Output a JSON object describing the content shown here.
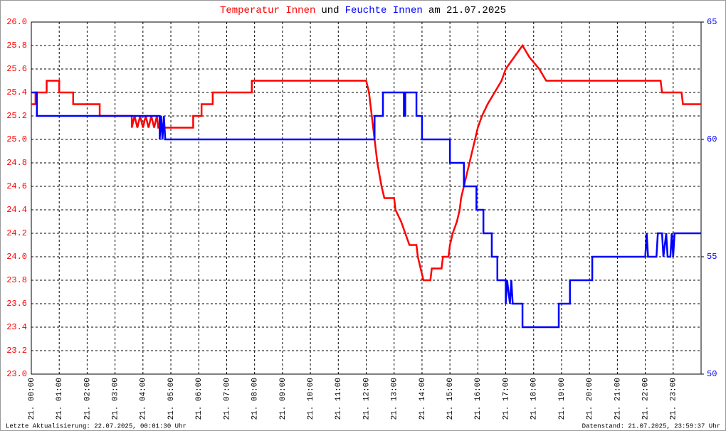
{
  "chart_data": {
    "type": "line",
    "title_join": "und",
    "title_date": "am 21.07.2025",
    "footer_left": "Letzte Aktualisierung: 22.07.2025, 00:01:30 Uhr",
    "footer_right": "Datenstand: 21.07.2025, 23:59:37 Uhr",
    "grid": true,
    "xlim": [
      0,
      24
    ],
    "xticks": [
      {
        "value": 0,
        "label": "21. 00:00"
      },
      {
        "value": 1,
        "label": "21. 01:00"
      },
      {
        "value": 2,
        "label": "21. 02:00"
      },
      {
        "value": 3,
        "label": "21. 03:00"
      },
      {
        "value": 4,
        "label": "21. 04:00"
      },
      {
        "value": 5,
        "label": "21. 05:00"
      },
      {
        "value": 6,
        "label": "21. 06:00"
      },
      {
        "value": 7,
        "label": "21. 07:00"
      },
      {
        "value": 8,
        "label": "21. 08:00"
      },
      {
        "value": 9,
        "label": "21. 09:00"
      },
      {
        "value": 10,
        "label": "21. 10:00"
      },
      {
        "value": 11,
        "label": "21. 11:00"
      },
      {
        "value": 12,
        "label": "21. 12:00"
      },
      {
        "value": 13,
        "label": "21. 13:00"
      },
      {
        "value": 14,
        "label": "21. 14:00"
      },
      {
        "value": 15,
        "label": "21. 15:00"
      },
      {
        "value": 16,
        "label": "21. 16:00"
      },
      {
        "value": 17,
        "label": "21. 17:00"
      },
      {
        "value": 18,
        "label": "21. 18:00"
      },
      {
        "value": 19,
        "label": "21. 19:00"
      },
      {
        "value": 20,
        "label": "21. 20:00"
      },
      {
        "value": 21,
        "label": "21. 21:00"
      },
      {
        "value": 22,
        "label": "21. 22:00"
      },
      {
        "value": 23,
        "label": "21. 23:00"
      }
    ],
    "ylim": [
      23,
      26
    ],
    "yticks": [
      {
        "value": 23,
        "label": "23.0"
      },
      {
        "value": 23.2,
        "label": "23.2"
      },
      {
        "value": 23.4,
        "label": "23.4"
      },
      {
        "value": 23.6,
        "label": "23.6"
      },
      {
        "value": 23.8,
        "label": "23.8"
      },
      {
        "value": 24,
        "label": "24.0"
      },
      {
        "value": 24.2,
        "label": "24.2"
      },
      {
        "value": 24.4,
        "label": "24.4"
      },
      {
        "value": 24.6,
        "label": "24.6"
      },
      {
        "value": 24.8,
        "label": "24.8"
      },
      {
        "value": 25,
        "label": "25.0"
      },
      {
        "value": 25.2,
        "label": "25.2"
      },
      {
        "value": 25.4,
        "label": "25.4"
      },
      {
        "value": 25.6,
        "label": "25.6"
      },
      {
        "value": 25.8,
        "label": "25.8"
      },
      {
        "value": 26,
        "label": "26.0"
      }
    ],
    "y2lim": [
      50,
      65
    ],
    "y2ticks": [
      50,
      55,
      60,
      65
    ],
    "series": [
      {
        "name": "Temperatur Innen",
        "color": "#ff0000",
        "x": [
          0,
          0.15,
          0.15,
          0.55,
          0.55,
          1.0,
          1.0,
          1.5,
          1.5,
          2.45,
          2.45,
          3.6,
          3.6,
          3.7,
          3.8,
          3.9,
          4.0,
          4.1,
          4.2,
          4.3,
          4.4,
          4.5,
          4.55,
          5.8,
          5.8,
          6.1,
          6.1,
          6.5,
          6.5,
          7.9,
          7.9,
          12.0,
          12.1,
          12.2,
          12.3,
          12.4,
          12.55,
          12.65,
          13.0,
          13.05,
          13.25,
          13.4,
          13.55,
          13.8,
          13.85,
          13.95,
          14.05,
          14.3,
          14.35,
          14.7,
          14.75,
          14.95,
          15.0,
          15.1,
          15.25,
          15.35,
          15.4,
          15.5,
          15.6,
          15.7,
          15.8,
          15.9,
          16.0,
          16.15,
          16.35,
          16.6,
          16.85,
          17.0,
          17.3,
          17.6,
          17.85,
          18.2,
          18.45,
          22.55,
          22.6,
          23.3,
          23.35,
          24.0
        ],
        "values": [
          25.3,
          25.3,
          25.4,
          25.4,
          25.5,
          25.5,
          25.4,
          25.4,
          25.3,
          25.3,
          25.2,
          25.2,
          25.1,
          25.2,
          25.1,
          25.2,
          25.1,
          25.2,
          25.1,
          25.2,
          25.1,
          25.2,
          25.1,
          25.1,
          25.2,
          25.2,
          25.3,
          25.3,
          25.4,
          25.4,
          25.5,
          25.5,
          25.4,
          25.2,
          25.0,
          24.8,
          24.6,
          24.5,
          24.5,
          24.4,
          24.3,
          24.2,
          24.1,
          24.1,
          24.0,
          23.9,
          23.8,
          23.8,
          23.9,
          23.9,
          24.0,
          24.0,
          24.1,
          24.2,
          24.3,
          24.4,
          24.5,
          24.6,
          24.7,
          24.8,
          24.9,
          25.0,
          25.1,
          25.2,
          25.3,
          25.4,
          25.5,
          25.6,
          25.7,
          25.8,
          25.7,
          25.6,
          25.5,
          25.5,
          25.4,
          25.4,
          25.3,
          25.3
        ]
      },
      {
        "name": "Feuchte Innen",
        "color": "#0000ff",
        "axis": "y2",
        "x": [
          0,
          0.2,
          0.2,
          4.6,
          4.6,
          4.65,
          4.7,
          4.75,
          4.8,
          12.3,
          12.3,
          12.6,
          12.6,
          13.35,
          13.35,
          13.4,
          13.4,
          13.8,
          13.8,
          14.0,
          14.0,
          15.0,
          15.0,
          15.5,
          15.5,
          15.95,
          15.95,
          16.2,
          16.2,
          16.5,
          16.5,
          16.7,
          16.7,
          17.0,
          17.0,
          17.05,
          17.15,
          17.2,
          17.25,
          17.6,
          17.6,
          18.9,
          18.9,
          19.3,
          19.3,
          20.1,
          20.1,
          22.0,
          22.05,
          22.1,
          22.4,
          22.45,
          22.6,
          22.65,
          22.75,
          22.8,
          22.9,
          22.95,
          23.0,
          23.05,
          24.0
        ],
        "values": [
          62,
          62,
          61,
          61,
          60,
          61,
          60,
          61,
          60,
          60,
          61,
          61,
          62,
          62,
          61,
          61,
          62,
          62,
          61,
          61,
          60,
          60,
          59,
          59,
          58,
          58,
          57,
          57,
          56,
          56,
          55,
          55,
          54,
          54,
          53,
          54,
          53,
          54,
          53,
          53,
          52,
          52,
          53,
          53,
          54,
          54,
          55,
          55,
          56,
          55,
          55,
          56,
          56,
          55,
          56,
          55,
          55,
          56,
          55,
          56,
          56
        ]
      }
    ]
  }
}
